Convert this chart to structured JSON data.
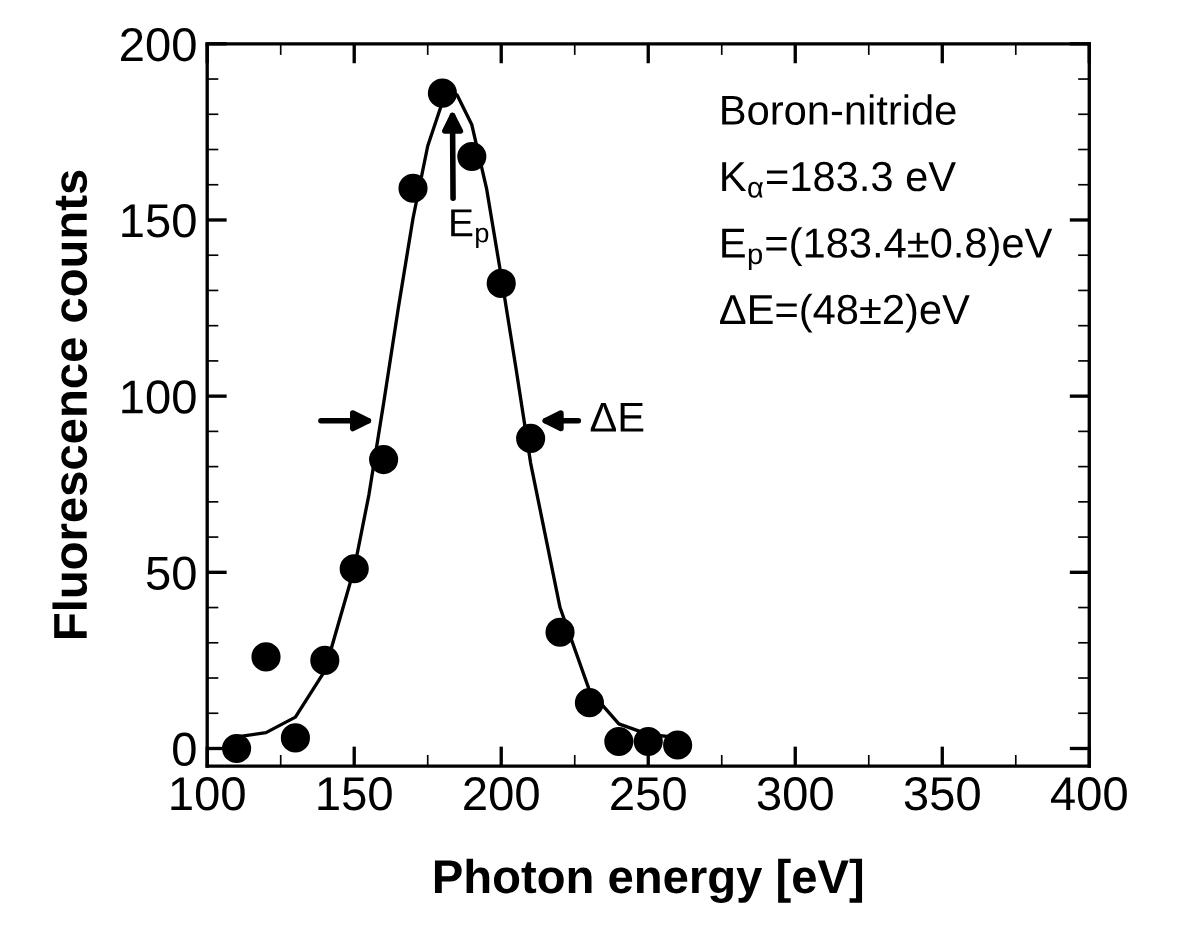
{
  "chart_data": {
    "type": "scatter",
    "xlabel": "Photon energy [eV]",
    "ylabel": "Fluorescence counts",
    "x": [
      110,
      120,
      130,
      140,
      150,
      160,
      170,
      180,
      190,
      200,
      210,
      220,
      230,
      240,
      250,
      260
    ],
    "series": [
      {
        "color": "#000000",
        "marker": "circle",
        "values": [
          0,
          26,
          3,
          25,
          51,
          82,
          159,
          186,
          168,
          132,
          88,
          33,
          13,
          2,
          2,
          1
        ]
      },
      {
        "type": "line",
        "color": "#000000",
        "line_style": "solid",
        "x": [
          110,
          120,
          130,
          140,
          150,
          155,
          160,
          165,
          170,
          175,
          180,
          185,
          190,
          195,
          200,
          205,
          210,
          220,
          230,
          240,
          250,
          260
        ],
        "values": [
          3.3,
          4.5,
          8.9,
          22,
          51,
          72,
          98,
          125,
          150.5,
          171,
          183.5,
          185.5,
          177,
          159,
          134,
          108,
          81,
          40,
          16.5,
          7,
          4,
          3.1
        ]
      }
    ],
    "xlim": [
      100,
      400
    ],
    "xticks": [
      100,
      150,
      200,
      250,
      300,
      350,
      400
    ],
    "ylim": [
      -5,
      200
    ],
    "yticks": [
      0,
      50,
      100,
      150,
      200
    ],
    "grid": false,
    "legend": false,
    "annotations": [
      {
        "text": "E$_{p}$",
        "x": 183.4,
        "y": 183
      },
      {
        "text": "ΔE",
        "x": 208,
        "y": 93
      },
      "Boron-nitride",
      "K$_{α}$=183.3 eV",
      "E$_{p}$=(183.4±0.8)eV",
      "ΔE=(48±2)eV"
    ]
  }
}
